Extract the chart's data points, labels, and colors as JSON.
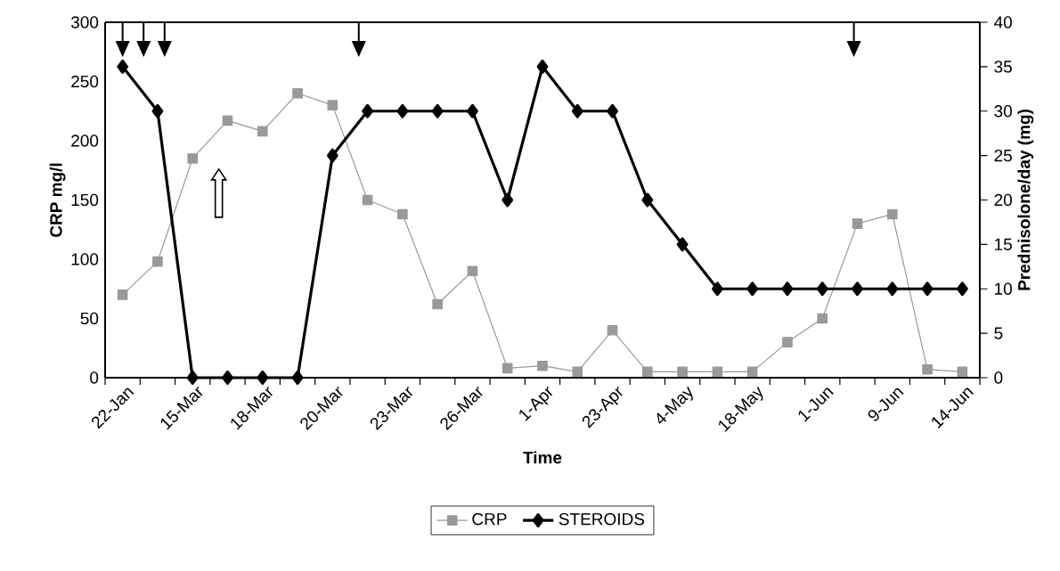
{
  "chart_data": {
    "type": "line",
    "xlabel": "Time",
    "ylabel": "CRP mg/l",
    "y2label": "Prednisolone/day (mg)",
    "categories": [
      "22-Jan",
      null,
      "15-Mar",
      null,
      "18-Mar",
      null,
      "20-Mar",
      null,
      "23-Mar",
      null,
      "26-Mar",
      null,
      "1-Apr",
      null,
      "23-Apr",
      null,
      "4-May",
      null,
      "18-May",
      null,
      "1-Jun",
      null,
      "9-Jun",
      null,
      "14-Jun"
    ],
    "series": [
      {
        "name": "CRP",
        "color": "#999999",
        "marker": "square",
        "values": [
          70,
          98,
          185,
          217,
          208,
          240,
          230,
          150,
          138,
          62,
          90,
          8,
          10,
          5,
          40,
          5,
          5,
          5,
          5,
          30,
          50,
          130,
          138,
          7,
          5
        ]
      },
      {
        "name": "STEROIDS",
        "color": "#000000",
        "marker": "diamond",
        "axis": "y2",
        "values": [
          35,
          30,
          0,
          0,
          0,
          0,
          25,
          30,
          30,
          30,
          30,
          20,
          35,
          30,
          30,
          20,
          15,
          10,
          10,
          10,
          10,
          10,
          10,
          10,
          10
        ]
      }
    ],
    "ylim": [
      0,
      300
    ],
    "yticks": [
      0,
      50,
      100,
      150,
      200,
      250,
      300
    ],
    "y2lim": [
      0,
      40
    ],
    "y2ticks": [
      0,
      5,
      10,
      15,
      20,
      25,
      30,
      35,
      40
    ],
    "legend": "bottom"
  }
}
